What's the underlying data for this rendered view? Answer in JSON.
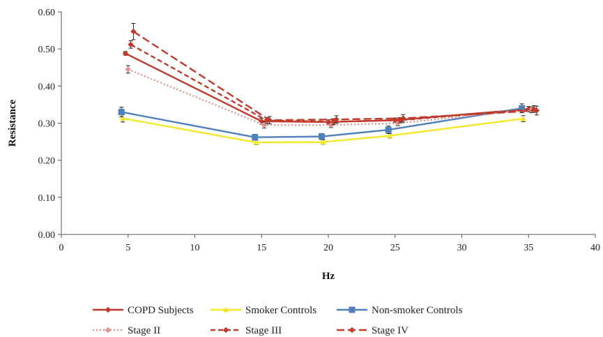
{
  "chart_data": {
    "type": "line",
    "title": "",
    "xlabel": "Hz",
    "ylabel": "Resistance",
    "xlim": [
      0,
      40
    ],
    "ylim": [
      0.0,
      0.6
    ],
    "x_ticks": [
      "0",
      "5",
      "10",
      "15",
      "20",
      "25",
      "30",
      "35",
      "40"
    ],
    "y_ticks": [
      "0.00",
      "0.10",
      "0.20",
      "0.30",
      "0.40",
      "0.50",
      "0.60"
    ],
    "grid": false,
    "legend_position": "bottom",
    "series": [
      {
        "name": "COPD Subjects",
        "color": "#C0392B",
        "dash": "solid",
        "marker": "diamond",
        "x": [
          4.8,
          15.0,
          20.0,
          25.0,
          35.0
        ],
        "y": [
          0.488,
          0.305,
          0.303,
          0.308,
          0.338
        ],
        "err": [
          0.005,
          0.008,
          0.006,
          0.006,
          0.007
        ]
      },
      {
        "name": "Smoker Controls",
        "color": "#F2E829",
        "dash": "solid",
        "marker": "triangle",
        "x": [
          4.6,
          14.6,
          19.6,
          24.6,
          34.6
        ],
        "y": [
          0.313,
          0.248,
          0.249,
          0.266,
          0.312
        ],
        "err": [
          0.01,
          0.006,
          0.006,
          0.006,
          0.008
        ]
      },
      {
        "name": "Non-smoker Controls",
        "color": "#4F81BD",
        "dash": "solid",
        "marker": "square",
        "x": [
          4.5,
          14.5,
          19.5,
          24.5,
          34.5
        ],
        "y": [
          0.33,
          0.262,
          0.264,
          0.282,
          0.34
        ],
        "err": [
          0.013,
          0.008,
          0.008,
          0.01,
          0.012
        ]
      },
      {
        "name": "Stage II",
        "color": "#E0938E",
        "dash": "dotted",
        "marker": "diamond",
        "x": [
          5.0,
          15.2,
          20.2,
          25.2,
          35.2
        ],
        "y": [
          0.445,
          0.295,
          0.295,
          0.3,
          0.336
        ],
        "err": [
          0.01,
          0.008,
          0.007,
          0.007,
          0.008
        ]
      },
      {
        "name": "Stage III",
        "color": "#C0392B",
        "dash": "dashed",
        "marker": "diamond",
        "x": [
          5.2,
          15.4,
          20.4,
          25.4,
          35.4
        ],
        "y": [
          0.512,
          0.307,
          0.304,
          0.308,
          0.338
        ],
        "err": [
          0.01,
          0.008,
          0.008,
          0.007,
          0.009
        ]
      },
      {
        "name": "Stage IV",
        "color": "#C0392B",
        "dash": "longdash",
        "marker": "diamond",
        "x": [
          5.4,
          15.6,
          20.6,
          25.6,
          35.6
        ],
        "y": [
          0.547,
          0.308,
          0.31,
          0.313,
          0.334
        ],
        "err": [
          0.022,
          0.01,
          0.01,
          0.01,
          0.012
        ]
      }
    ]
  }
}
